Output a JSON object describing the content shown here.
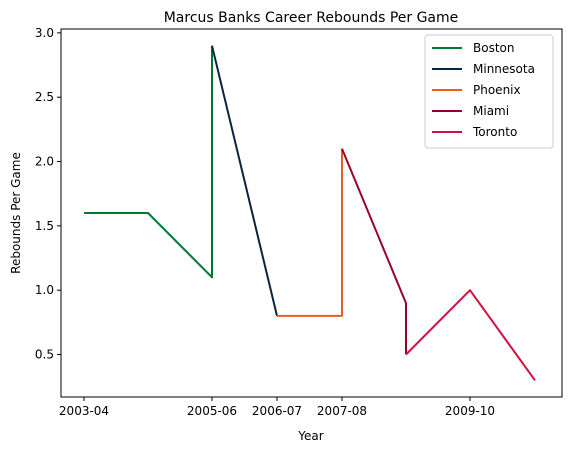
{
  "chart_data": {
    "type": "line",
    "title": "Marcus Banks Career Rebounds Per Game",
    "xlabel": "Year",
    "ylabel": "Rebounds Per Game",
    "ylim": [
      0.17,
      3.03
    ],
    "grid": false,
    "legend_position": "top-right",
    "x_ticks": [
      "2003-04",
      "2005-06",
      "2006-07",
      "2007-08",
      "2009-10"
    ],
    "y_ticks": [
      "0.5",
      "1.0",
      "1.5",
      "2.0",
      "2.5",
      "3.0"
    ],
    "y_tick_values": [
      0.5,
      1.0,
      1.5,
      2.0,
      2.5,
      3.0
    ],
    "series": [
      {
        "name": "Boston",
        "color": "#007A33",
        "points": [
          [
            "2003-04",
            1.6
          ],
          [
            "2004-05",
            1.6
          ],
          [
            "2005-06",
            1.1
          ],
          [
            "2005-06",
            2.9
          ]
        ]
      },
      {
        "name": "Minnesota",
        "color": "#0C2340",
        "points": [
          [
            "2005-06",
            2.9
          ],
          [
            "2006-07",
            0.8
          ]
        ]
      },
      {
        "name": "Phoenix",
        "color": "#E56020",
        "points": [
          [
            "2006-07",
            0.8
          ],
          [
            "2007-08",
            0.8
          ],
          [
            "2007-08",
            2.1
          ]
        ]
      },
      {
        "name": "Miami",
        "color": "#98002E",
        "points": [
          [
            "2007-08",
            2.1
          ],
          [
            "2008-09",
            0.9
          ],
          [
            "2008-09",
            0.5
          ]
        ]
      },
      {
        "name": "Toronto",
        "color": "#CE1141",
        "points": [
          [
            "2008-09",
            0.5
          ],
          [
            "2009-10",
            1.0
          ],
          [
            "2010-11",
            0.3
          ]
        ]
      }
    ]
  }
}
